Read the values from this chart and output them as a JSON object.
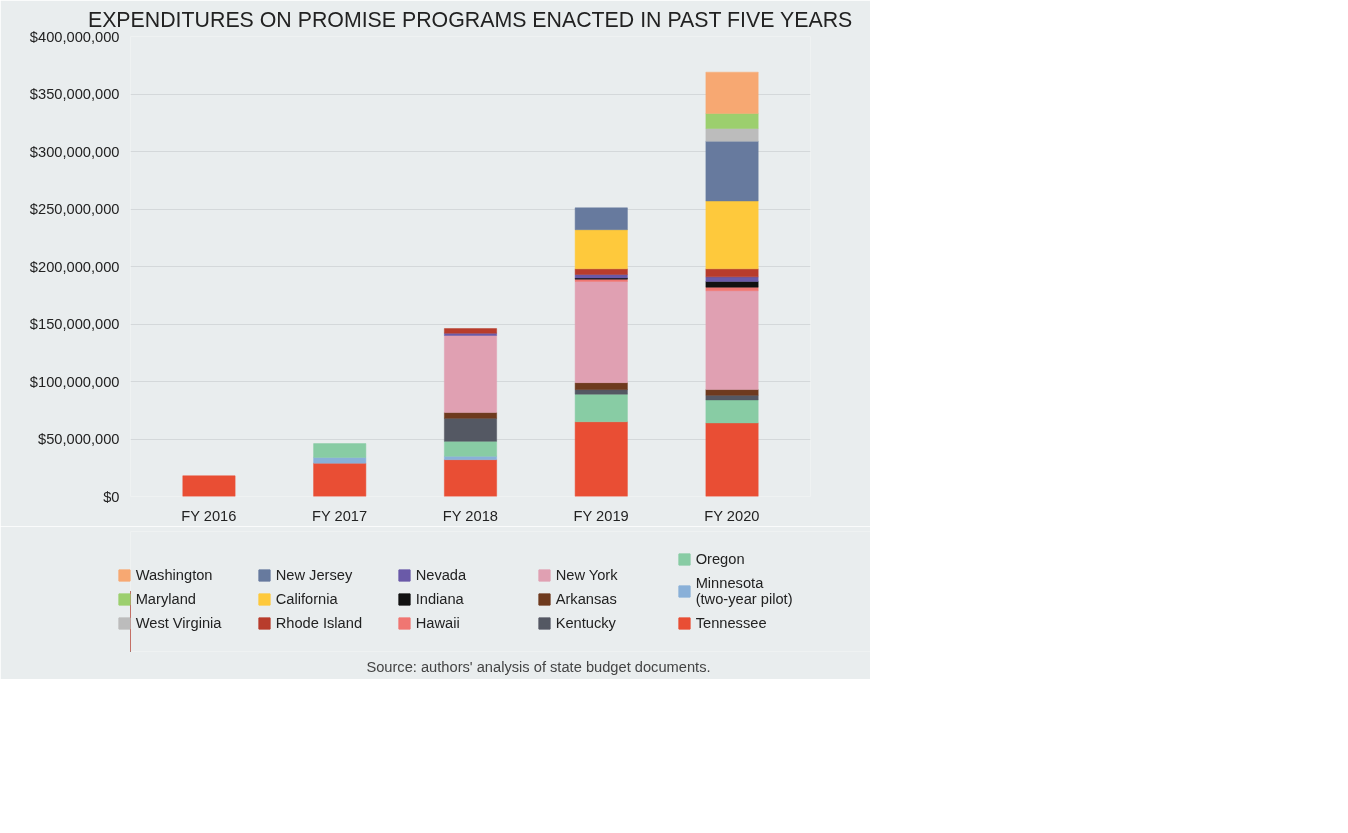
{
  "chart_data": {
    "type": "bar",
    "stacked": true,
    "title": "EXPENDITURES ON PROMISE PROGRAMS ENACTED IN PAST FIVE YEARS",
    "categories": [
      "FY 2016",
      "FY 2017",
      "FY 2018",
      "FY 2019",
      "FY 2020"
    ],
    "ylim": [
      0,
      400000000
    ],
    "yticks": [
      {
        "value": 0,
        "label": "$0"
      },
      {
        "value": 50000000,
        "label": "$50,000,000"
      },
      {
        "value": 100000000,
        "label": "$100,000,000"
      },
      {
        "value": 150000000,
        "label": "$150,000,000"
      },
      {
        "value": 200000000,
        "label": "$200,000,000"
      },
      {
        "value": 250000000,
        "label": "$250,000,000"
      },
      {
        "value": 300000000,
        "label": "$300,000,000"
      },
      {
        "value": 350000000,
        "label": "$350,000,000"
      },
      {
        "value": 400000000,
        "label": "$400,000,000"
      }
    ],
    "grid": "y",
    "legend": "bottom",
    "series": [
      {
        "name": "Tennessee",
        "color": "#e94e34",
        "values": [
          18000000,
          29000000,
          32000000,
          65000000,
          64000000
        ]
      },
      {
        "name": "Minnesota\n(two-year pilot)",
        "color": "#89b0d8",
        "values": [
          null,
          5000000,
          3000000,
          null,
          null
        ]
      },
      {
        "name": "Oregon",
        "color": "#88cca4",
        "values": [
          null,
          12000000,
          13000000,
          24000000,
          20000000
        ]
      },
      {
        "name": "Kentucky",
        "color": "#545863",
        "values": [
          null,
          null,
          20000000,
          4000000,
          4000000
        ]
      },
      {
        "name": "Arkansas",
        "color": "#6e3a1e",
        "values": [
          null,
          null,
          5000000,
          6000000,
          5000000
        ]
      },
      {
        "name": "New York",
        "color": "#e0a0b2",
        "values": [
          null,
          null,
          67000000,
          88000000,
          86000000
        ]
      },
      {
        "name": "Hawaii",
        "color": "#f07672",
        "values": [
          null,
          null,
          null,
          2000000,
          3000000
        ]
      },
      {
        "name": "Indiana",
        "color": "#111111",
        "values": [
          null,
          null,
          null,
          1000000,
          5000000
        ]
      },
      {
        "name": "Nevada",
        "color": "#6a5aa8",
        "values": [
          null,
          null,
          2000000,
          3000000,
          4000000
        ]
      },
      {
        "name": "Rhode Island",
        "color": "#b83c2c",
        "values": [
          null,
          null,
          4000000,
          5000000,
          7000000
        ]
      },
      {
        "name": "California",
        "color": "#fec93c",
        "values": [
          null,
          null,
          null,
          34000000,
          59000000
        ]
      },
      {
        "name": "New Jersey",
        "color": "#677a9e",
        "values": [
          null,
          null,
          null,
          19000000,
          52000000
        ]
      },
      {
        "name": "West Virginia",
        "color": "#bcbcbc",
        "values": [
          null,
          null,
          null,
          null,
          11000000
        ]
      },
      {
        "name": "Maryland",
        "color": "#9ccf6e",
        "values": [
          null,
          null,
          null,
          null,
          13000000
        ]
      },
      {
        "name": "Washington",
        "color": "#f7a872",
        "values": [
          null,
          null,
          null,
          null,
          36000000
        ]
      }
    ],
    "annotations": [
      "Source:  authors' analysis of state budget documents."
    ]
  }
}
